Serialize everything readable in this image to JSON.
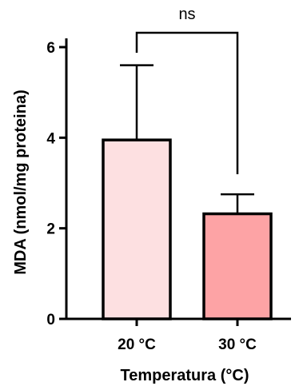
{
  "chart_data": {
    "type": "bar",
    "categories": [
      "20 °C",
      "30 °C"
    ],
    "values": [
      3.95,
      2.32
    ],
    "error_upper": [
      5.6,
      2.75
    ],
    "colors": [
      "#fde0e1",
      "#fda3a5"
    ],
    "xlabel": "Temperatura (°C)",
    "ylabel": "MDA (nmol/mg proteina)",
    "ylim": [
      0,
      6
    ],
    "yticks": [
      "0",
      "2",
      "4",
      "6"
    ],
    "ytick_values": [
      0,
      2,
      4,
      6
    ],
    "significance": {
      "label": "ns",
      "between": [
        0,
        1
      ]
    },
    "grid": false
  }
}
